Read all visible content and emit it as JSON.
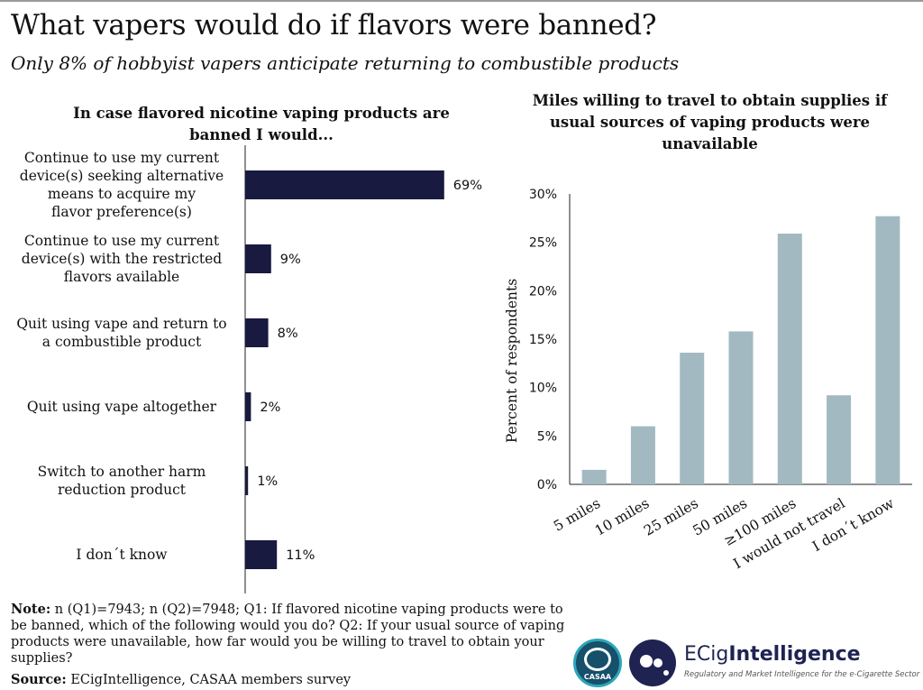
{
  "title": "What vapers would do if flavors were banned?",
  "subtitle": "Only 8% of hobbyist vapers anticipate returning to combustible products",
  "note_label": "Note:",
  "note_text": " n (Q1)=7943; n (Q2)=7948; Q1: If flavored nicotine vaping products were to be banned, which of the following would you do? Q2: If your usual source of vaping products were unavailable, how far would you be willing to travel to obtain your supplies?",
  "source_label": "Source:",
  "source_text": " ECigIntelligence, CASAA members survey",
  "logos": {
    "casaa": "CASAA",
    "eci_name_light": "ECig",
    "eci_name_bold": "Intelligence",
    "eci_tagline": "Regulatory and Market Intelligence for the e-Cigarette Sector"
  },
  "colors": {
    "left_bars": "#191a3f",
    "right_bars": "#a3b9c1",
    "axis": "#222222",
    "grid": "#bfbfbf"
  },
  "chart_data": [
    {
      "type": "bar",
      "orientation": "horizontal",
      "title": "In case flavored nicotine vaping products are banned I would...",
      "categories": [
        [
          "Continue to use my current",
          "device(s) seeking alternative",
          "means to acquire my",
          "flavor preference(s)"
        ],
        [
          "Continue to use my current",
          "device(s) with the restricted",
          "flavors available"
        ],
        [
          "Quit using vape and return to",
          "a combustible product"
        ],
        [
          "Quit using vape altogether"
        ],
        [
          "Switch to another harm",
          "reduction product"
        ],
        [
          "I don´t know"
        ]
      ],
      "values": [
        69,
        9,
        8,
        2,
        1,
        11
      ],
      "value_labels": [
        "69%",
        "9%",
        "8%",
        "2%",
        "1%",
        "11%"
      ],
      "xlim": [
        0,
        100
      ],
      "grid": false
    },
    {
      "type": "bar",
      "orientation": "vertical",
      "title": "Miles willing to travel to obtain supplies if usual sources of vaping products were unavailable",
      "ylabel": "Percent of respondents",
      "categories": [
        "5 miles",
        "10 miles",
        "25 miles",
        "50 miles",
        "≥100 miles",
        "I would not travel",
        "I don´t know"
      ],
      "values": [
        1.5,
        6.0,
        13.6,
        15.8,
        25.9,
        9.2,
        27.7
      ],
      "ylim": [
        0,
        30
      ],
      "yticks": [
        0,
        5,
        10,
        15,
        20,
        25,
        30
      ],
      "ytick_labels": [
        "0%",
        "5%",
        "10%",
        "15%",
        "20%",
        "25%",
        "30%"
      ],
      "grid": false
    }
  ]
}
